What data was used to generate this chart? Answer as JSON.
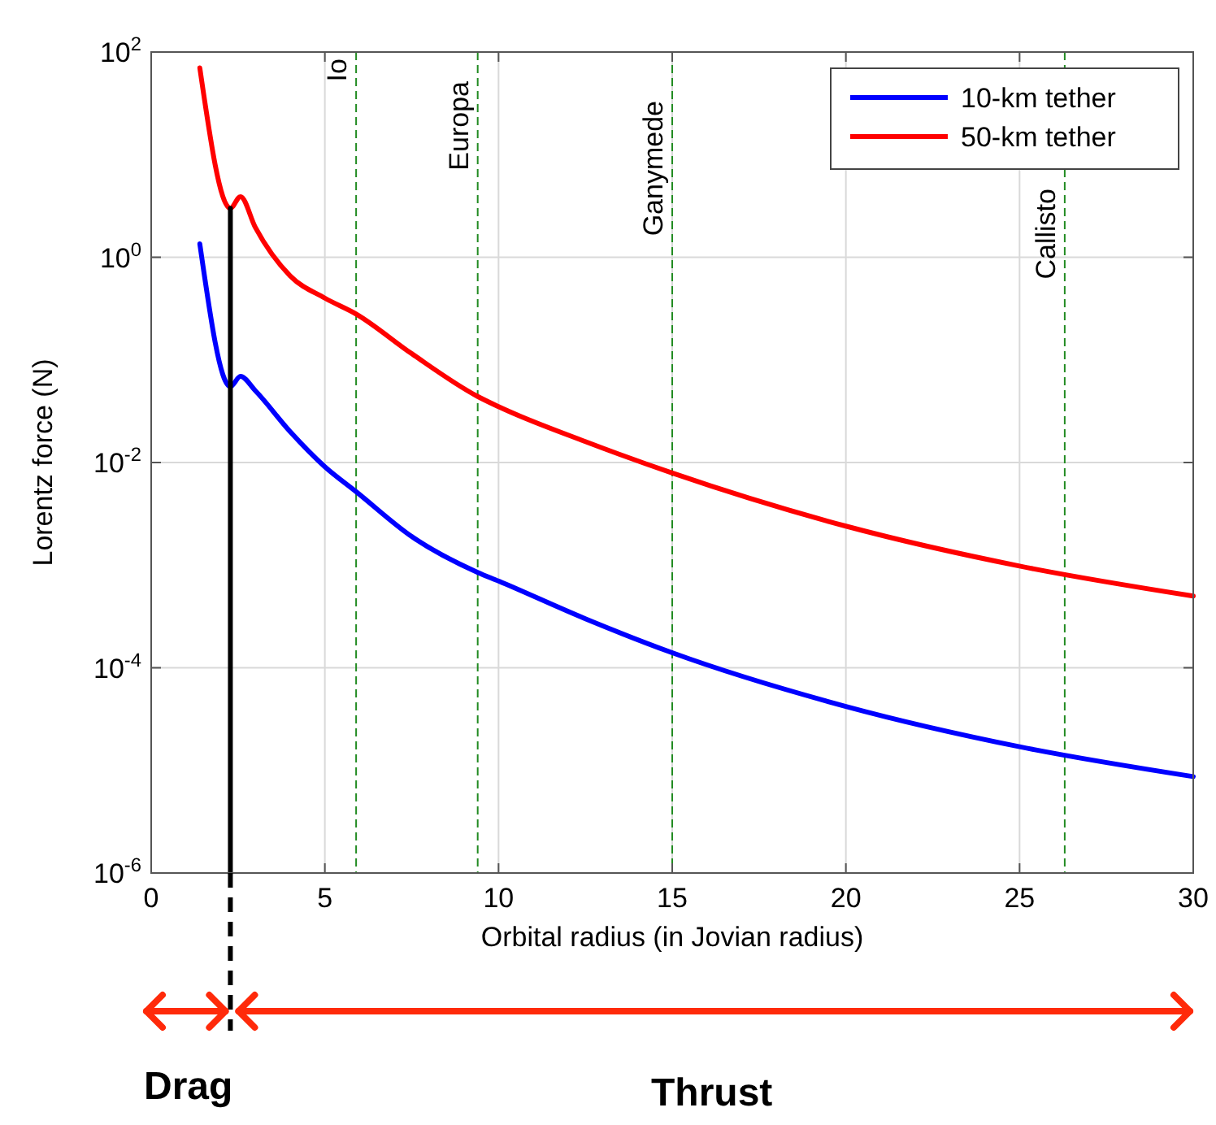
{
  "chart_data": {
    "type": "line",
    "xlabel": "Orbital radius (in Jovian radius)",
    "ylabel": "Lorentz force (N)",
    "xlim": [
      0,
      30
    ],
    "xticks": [
      0,
      5,
      10,
      15,
      20,
      25,
      30
    ],
    "ylim": [
      1e-06,
      100
    ],
    "yticks": [
      {
        "value": 1e-06,
        "label": "10$^{-6}$"
      },
      {
        "value": 0.0001,
        "label": "10$^{-4}$"
      },
      {
        "value": 0.01,
        "label": "10$^{-2}$"
      },
      {
        "value": 1,
        "label": "10$^{0}$"
      },
      {
        "value": 100,
        "label": "10$^{2}$"
      }
    ],
    "log": "y",
    "grid": true,
    "legend": "top right",
    "line_style": "solid",
    "series": [
      {
        "name": "10-km tether",
        "color": "#0000ff",
        "x": [
          1.4,
          2.28,
          2.57,
          3,
          4,
          5,
          5.9,
          7.5,
          9.4,
          10,
          12.5,
          15,
          20,
          25,
          30
        ],
        "values": [
          1.35,
          0.055,
          0.069,
          0.05,
          0.02,
          0.0091,
          0.0052,
          0.0019,
          0.00085,
          0.0007,
          0.0003,
          0.00014,
          4.2e-05,
          1.7e-05,
          8.7e-06
        ]
      },
      {
        "name": "50-km tether",
        "color": "#ff0000",
        "x": [
          1.4,
          2.28,
          2.57,
          3,
          4,
          5,
          5.9,
          7.5,
          9.4,
          10,
          12.5,
          15,
          20,
          25,
          30
        ],
        "values": [
          70,
          3.0,
          3.9,
          1.95,
          0.66,
          0.4,
          0.28,
          0.115,
          0.044,
          0.035,
          0.016,
          0.0079,
          0.0024,
          0.00098,
          0.0005
        ]
      },
      {
        "color": "#000000",
        "x": [
          2.28,
          2.28
        ],
        "values": [
          3.0,
          1e-06
        ]
      }
    ],
    "ref_lines": [
      {
        "axis": "x",
        "value": 5.9,
        "label": "Io",
        "color": "#228b22",
        "line_style": "dashed"
      },
      {
        "axis": "x",
        "value": 9.4,
        "label": "Europa",
        "color": "#228b22",
        "line_style": "dashed"
      },
      {
        "axis": "x",
        "value": 15,
        "label": "Ganymede",
        "color": "#228b22",
        "line_style": "dashed"
      },
      {
        "axis": "x",
        "value": 26.3,
        "label": "Callisto",
        "color": "#228b22",
        "line_style": "dashed"
      }
    ],
    "annotations": [
      "Drag",
      "Thrust"
    ]
  }
}
